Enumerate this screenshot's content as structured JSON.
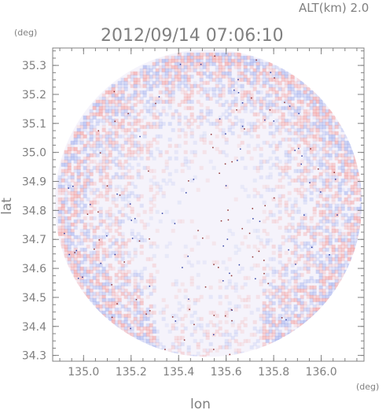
{
  "chart_data": {
    "type": "heatmap",
    "title": "2012/09/14 07:06:10",
    "altitude_label": "ALT(km) 2.0",
    "xlabel": "lon",
    "ylabel": "lat",
    "x_unit": "(deg)",
    "y_unit": "(deg)",
    "xlim": [
      134.87,
      136.18
    ],
    "ylim": [
      34.28,
      35.36
    ],
    "x_ticks": [
      "135.0",
      "135.2",
      "135.4",
      "135.6",
      "135.8",
      "136.0"
    ],
    "y_ticks": [
      "34.3",
      "34.4",
      "34.5",
      "34.6",
      "34.7",
      "34.8",
      "34.9",
      "35.0",
      "35.1",
      "35.2",
      "35.3"
    ],
    "radar_center": {
      "lon": 135.525,
      "lat": 34.825
    },
    "radar_radius_deg_lat": 0.53,
    "colors": {
      "axis": "#808080",
      "positive": "#f4a3a3",
      "negative": "#a9b6ef",
      "background_disc": "#f5f3fb"
    }
  }
}
